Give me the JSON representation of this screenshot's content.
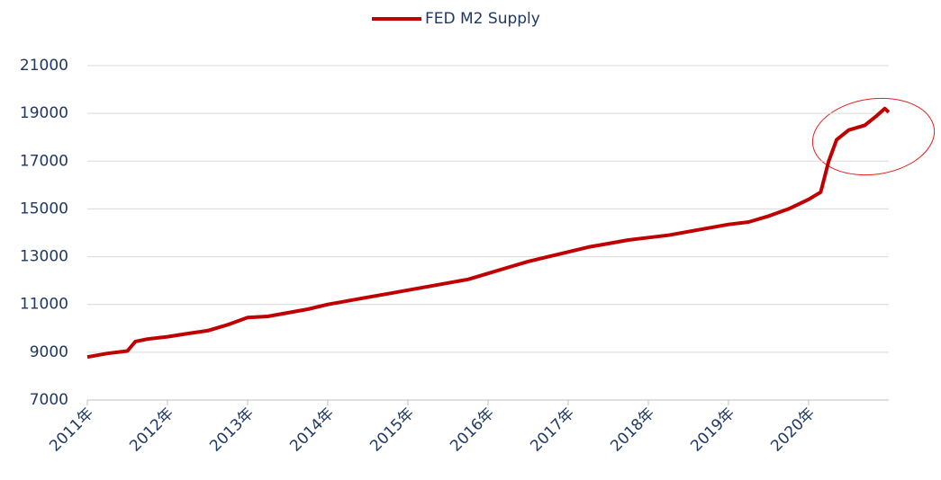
{
  "chart_data": {
    "type": "line",
    "x": [
      2011.0,
      2011.25,
      2011.5,
      2011.6,
      2011.75,
      2012.0,
      2012.25,
      2012.5,
      2012.75,
      2013.0,
      2013.25,
      2013.5,
      2013.75,
      2014.0,
      2014.25,
      2014.5,
      2014.75,
      2015.0,
      2015.25,
      2015.5,
      2015.75,
      2016.0,
      2016.25,
      2016.5,
      2016.75,
      2017.0,
      2017.25,
      2017.5,
      2017.75,
      2018.0,
      2018.25,
      2018.5,
      2018.75,
      2019.0,
      2019.25,
      2019.5,
      2019.75,
      2020.0,
      2020.15,
      2020.25,
      2020.35,
      2020.5,
      2020.7,
      2020.85,
      2020.95,
      2021.0
    ],
    "series": [
      {
        "name": "FED M2 Supply",
        "color": "#c00000",
        "values": [
          8800,
          8950,
          9050,
          9450,
          9550,
          9650,
          9780,
          9900,
          10150,
          10450,
          10500,
          10650,
          10800,
          11000,
          11150,
          11300,
          11450,
          11600,
          11750,
          11900,
          12050,
          12300,
          12550,
          12800,
          13000,
          13200,
          13400,
          13550,
          13700,
          13800,
          13900,
          14050,
          14200,
          14350,
          14450,
          14700,
          15000,
          15400,
          15700,
          17000,
          17900,
          18300,
          18500,
          18900,
          19200,
          19050
        ]
      }
    ],
    "xlim": [
      2011,
      2021
    ],
    "xticks": [
      {
        "value": 2011,
        "label": "2011年"
      },
      {
        "value": 2012,
        "label": "2012年"
      },
      {
        "value": 2013,
        "label": "2013年"
      },
      {
        "value": 2014,
        "label": "2014年"
      },
      {
        "value": 2015,
        "label": "2015年"
      },
      {
        "value": 2016,
        "label": "2016年"
      },
      {
        "value": 2017,
        "label": "2017年"
      },
      {
        "value": 2018,
        "label": "2018年"
      },
      {
        "value": 2019,
        "label": "2019年"
      },
      {
        "value": 2020,
        "label": "2020年"
      }
    ],
    "ylim": [
      7000,
      21000
    ],
    "yticks": [
      7000,
      9000,
      11000,
      13000,
      15000,
      17000,
      19000,
      21000
    ],
    "grid": true
  }
}
